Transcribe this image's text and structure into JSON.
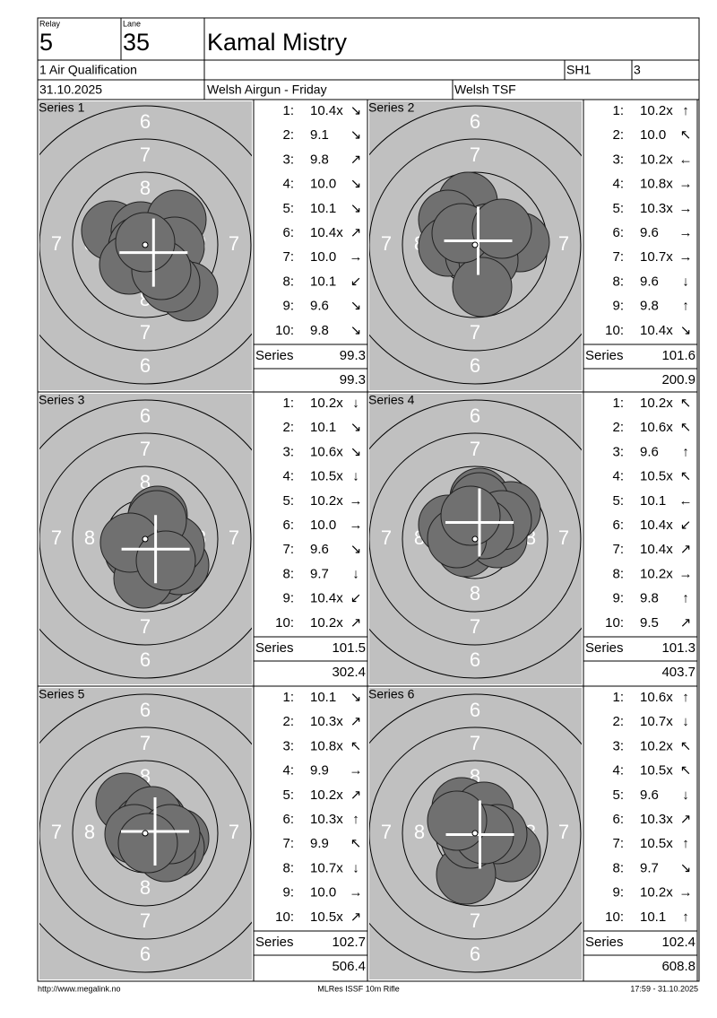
{
  "header": {
    "relay_label": "Relay",
    "relay": "5",
    "lane_label": "Lane",
    "lane": "35",
    "name": "Kamal Mistry",
    "event": "1 Air Qualification",
    "shooter_class": "SH1",
    "class_no": "3",
    "date": "31.10.2025",
    "competition": "Welsh Airgun - Friday",
    "club": "Welsh TSF"
  },
  "ring_labels": [
    "6",
    "7",
    "8"
  ],
  "series_label": "Series",
  "series": [
    {
      "title": "Series 1",
      "shots": [
        {
          "n": "1:",
          "score": "10.4x",
          "dir": "↘"
        },
        {
          "n": "2:",
          "score": "9.1",
          "dir": "↘"
        },
        {
          "n": "3:",
          "score": "9.8",
          "dir": "↗"
        },
        {
          "n": "4:",
          "score": "10.0",
          "dir": "↘"
        },
        {
          "n": "5:",
          "score": "10.1",
          "dir": "↘"
        },
        {
          "n": "6:",
          "score": "10.4x",
          "dir": "↗"
        },
        {
          "n": "7:",
          "score": "10.0",
          "dir": "→"
        },
        {
          "n": "8:",
          "score": "10.1",
          "dir": "↙"
        },
        {
          "n": "9:",
          "score": "9.6",
          "dir": "↘"
        },
        {
          "n": "10:",
          "score": "9.8",
          "dir": "↘"
        }
      ],
      "series_total": "99.3",
      "running_total": "99.3"
    },
    {
      "title": "Series 2",
      "shots": [
        {
          "n": "1:",
          "score": "10.2x",
          "dir": "↑"
        },
        {
          "n": "2:",
          "score": "10.0",
          "dir": "↖"
        },
        {
          "n": "3:",
          "score": "10.2x",
          "dir": "←"
        },
        {
          "n": "4:",
          "score": "10.8x",
          "dir": "→"
        },
        {
          "n": "5:",
          "score": "10.3x",
          "dir": "→"
        },
        {
          "n": "6:",
          "score": "9.6",
          "dir": "→"
        },
        {
          "n": "7:",
          "score": "10.7x",
          "dir": "→"
        },
        {
          "n": "8:",
          "score": "9.6",
          "dir": "↓"
        },
        {
          "n": "9:",
          "score": "9.8",
          "dir": "↑"
        },
        {
          "n": "10:",
          "score": "10.4x",
          "dir": "↘"
        }
      ],
      "series_total": "101.6",
      "running_total": "200.9"
    },
    {
      "title": "Series 3",
      "shots": [
        {
          "n": "1:",
          "score": "10.2x",
          "dir": "↓"
        },
        {
          "n": "2:",
          "score": "10.1",
          "dir": "↘"
        },
        {
          "n": "3:",
          "score": "10.6x",
          "dir": "↘"
        },
        {
          "n": "4:",
          "score": "10.5x",
          "dir": "↓"
        },
        {
          "n": "5:",
          "score": "10.2x",
          "dir": "→"
        },
        {
          "n": "6:",
          "score": "10.0",
          "dir": "→"
        },
        {
          "n": "7:",
          "score": "9.6",
          "dir": "↘"
        },
        {
          "n": "8:",
          "score": "9.7",
          "dir": "↓"
        },
        {
          "n": "9:",
          "score": "10.4x",
          "dir": "↙"
        },
        {
          "n": "10:",
          "score": "10.2x",
          "dir": "↗"
        }
      ],
      "series_total": "101.5",
      "running_total": "302.4"
    },
    {
      "title": "Series 4",
      "shots": [
        {
          "n": "1:",
          "score": "10.2x",
          "dir": "↖"
        },
        {
          "n": "2:",
          "score": "10.6x",
          "dir": "↖"
        },
        {
          "n": "3:",
          "score": "9.6",
          "dir": "↑"
        },
        {
          "n": "4:",
          "score": "10.5x",
          "dir": "↖"
        },
        {
          "n": "5:",
          "score": "10.1",
          "dir": "←"
        },
        {
          "n": "6:",
          "score": "10.4x",
          "dir": "↙"
        },
        {
          "n": "7:",
          "score": "10.4x",
          "dir": "↗"
        },
        {
          "n": "8:",
          "score": "10.2x",
          "dir": "→"
        },
        {
          "n": "9:",
          "score": "9.8",
          "dir": "↑"
        },
        {
          "n": "10:",
          "score": "9.5",
          "dir": "↗"
        }
      ],
      "series_total": "101.3",
      "running_total": "403.7"
    },
    {
      "title": "Series 5",
      "shots": [
        {
          "n": "1:",
          "score": "10.1",
          "dir": "↘"
        },
        {
          "n": "2:",
          "score": "10.3x",
          "dir": "↗"
        },
        {
          "n": "3:",
          "score": "10.8x",
          "dir": "↖"
        },
        {
          "n": "4:",
          "score": "9.9",
          "dir": "→"
        },
        {
          "n": "5:",
          "score": "10.2x",
          "dir": "↗"
        },
        {
          "n": "6:",
          "score": "10.3x",
          "dir": "↑"
        },
        {
          "n": "7:",
          "score": "9.9",
          "dir": "↖"
        },
        {
          "n": "8:",
          "score": "10.7x",
          "dir": "↓"
        },
        {
          "n": "9:",
          "score": "10.0",
          "dir": "→"
        },
        {
          "n": "10:",
          "score": "10.5x",
          "dir": "↗"
        }
      ],
      "series_total": "102.7",
      "running_total": "506.4"
    },
    {
      "title": "Series 6",
      "shots": [
        {
          "n": "1:",
          "score": "10.6x",
          "dir": "↑"
        },
        {
          "n": "2:",
          "score": "10.7x",
          "dir": "↓"
        },
        {
          "n": "3:",
          "score": "10.2x",
          "dir": "↖"
        },
        {
          "n": "4:",
          "score": "10.5x",
          "dir": "↖"
        },
        {
          "n": "5:",
          "score": "9.6",
          "dir": "↓"
        },
        {
          "n": "6:",
          "score": "10.3x",
          "dir": "↗"
        },
        {
          "n": "7:",
          "score": "10.5x",
          "dir": "↑"
        },
        {
          "n": "8:",
          "score": "9.7",
          "dir": "↘"
        },
        {
          "n": "9:",
          "score": "10.2x",
          "dir": "→"
        },
        {
          "n": "10:",
          "score": "10.1",
          "dir": "↑"
        }
      ],
      "series_total": "102.4",
      "running_total": "608.8"
    }
  ],
  "footer": {
    "url": "http://www.megalink.no",
    "software": "MLRes ISSF 10m Rifle",
    "timestamp": "17:59 - 31.10.2025"
  }
}
